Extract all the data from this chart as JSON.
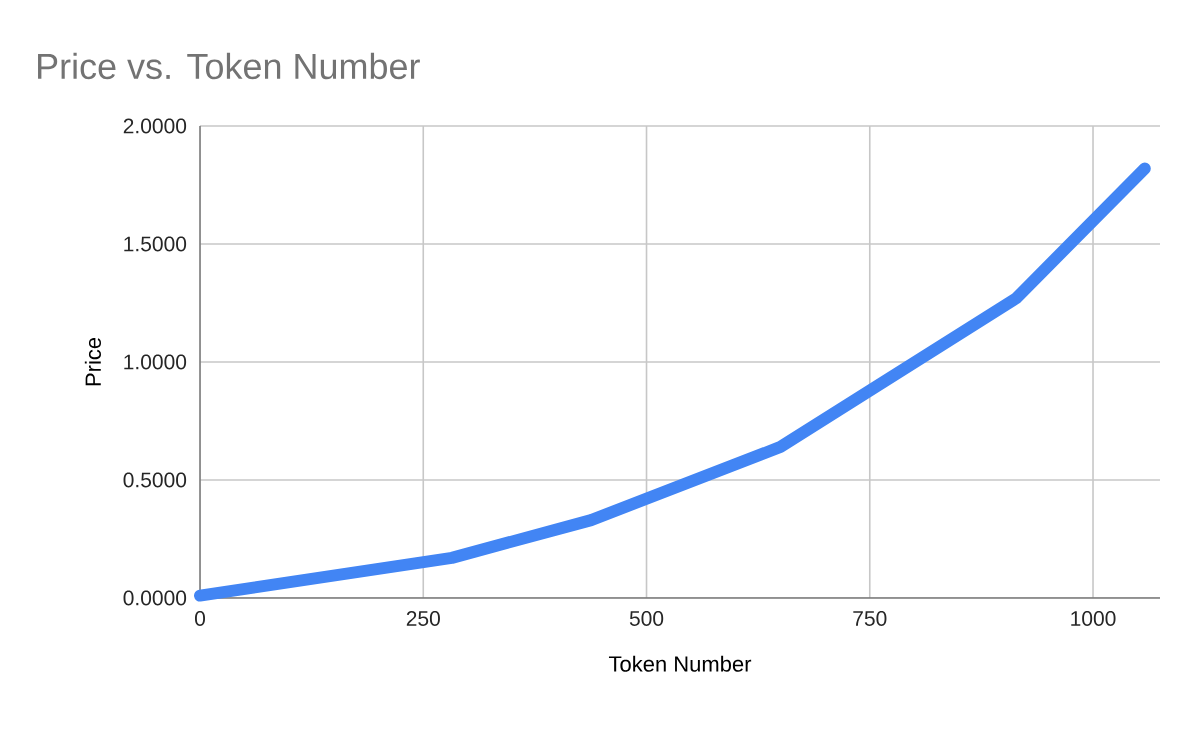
{
  "chart_data": {
    "type": "line",
    "title": "Price vs. Token Number",
    "xlabel": "Token Number",
    "ylabel": "Price",
    "x": [
      0,
      282,
      438,
      650,
      914,
      1058
    ],
    "series": [
      {
        "color": "#4285f4",
        "values": [
          0.01,
          0.17,
          0.33,
          0.64,
          1.27,
          1.82
        ]
      }
    ],
    "xlim": [
      0,
      1075
    ],
    "xticks": [
      0,
      250,
      500,
      750,
      1000
    ],
    "ylim": [
      0,
      2
    ],
    "yticks": [
      {
        "value": 0,
        "label": "0.0000"
      },
      {
        "value": 0.5,
        "label": "0.5000"
      },
      {
        "value": 1,
        "label": "1.0000"
      },
      {
        "value": 1.5,
        "label": "1.5000"
      },
      {
        "value": 2,
        "label": "2.0000"
      }
    ],
    "grid": true,
    "marker": "none",
    "line_style": "solid"
  }
}
